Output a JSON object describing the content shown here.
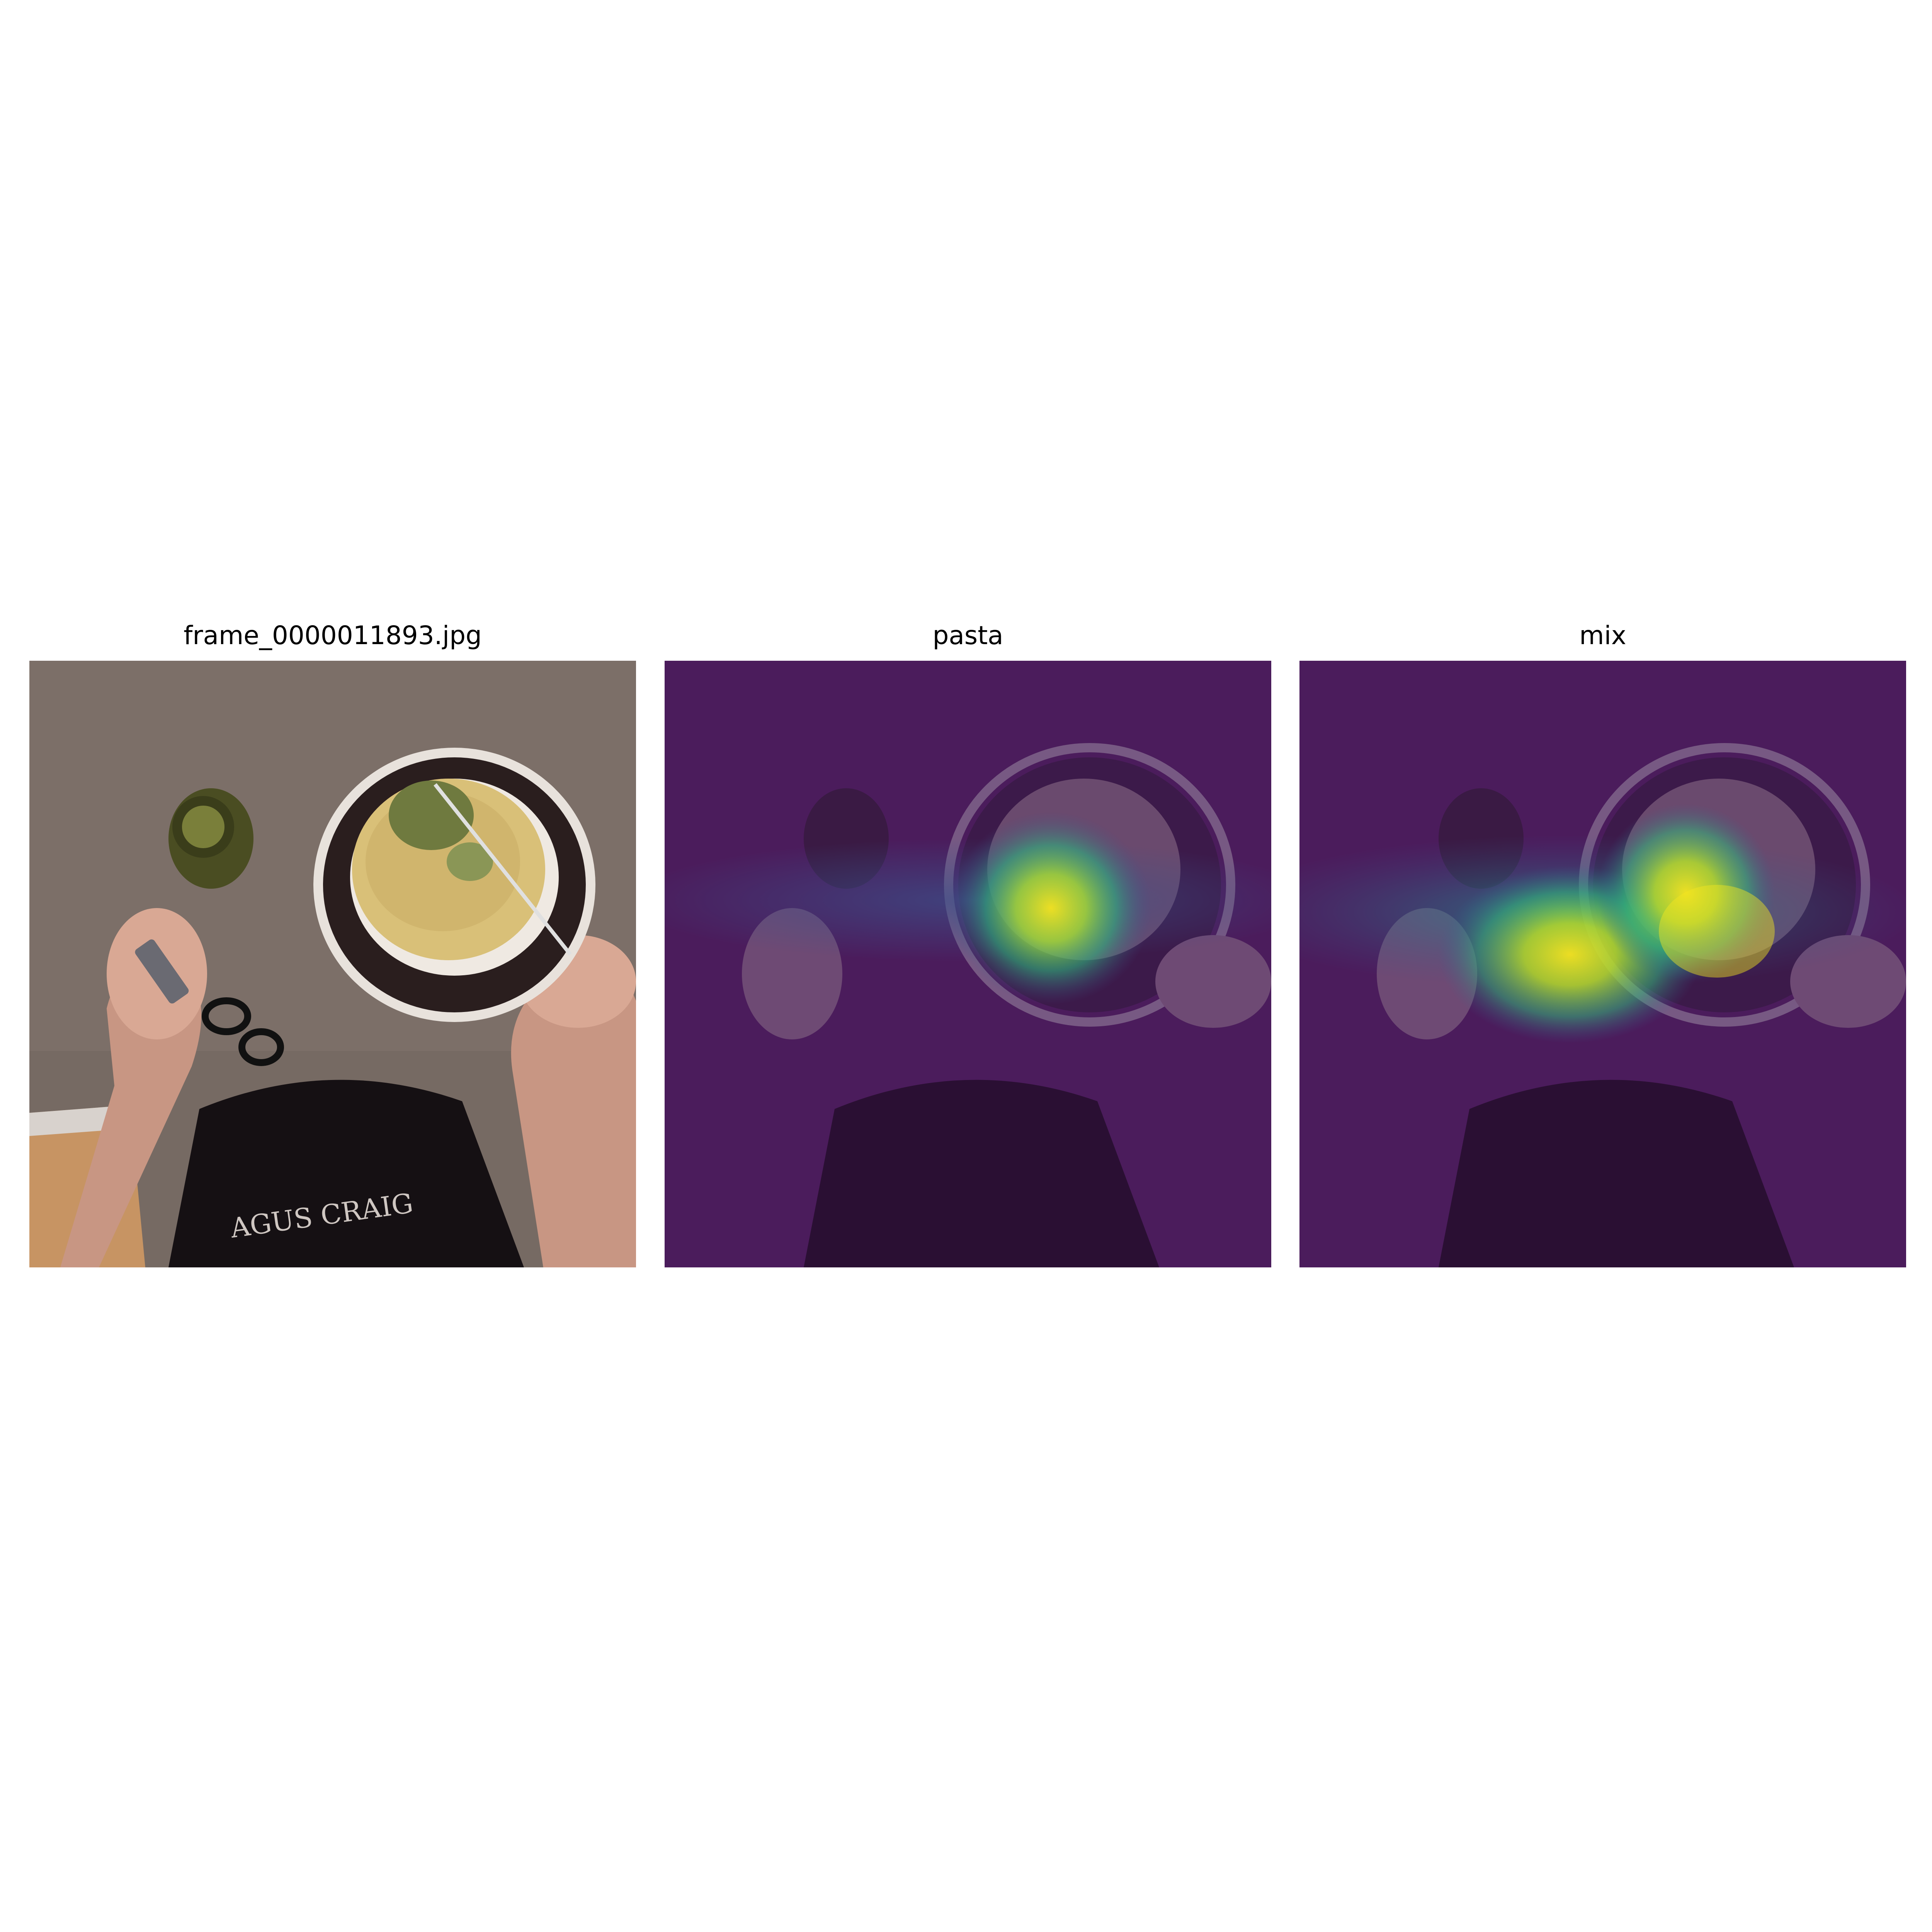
{
  "figure": {
    "panels": [
      {
        "title": "frame_0000011893.jpg",
        "kind": "original-frame"
      },
      {
        "title": "pasta",
        "kind": "attention-heatmap",
        "colormap": "viridis"
      },
      {
        "title": "mix",
        "kind": "attention-heatmap",
        "colormap": "viridis"
      }
    ]
  },
  "scene": {
    "shirt_print_text": "AGUS CRAIG",
    "colors": {
      "table": "#766a63",
      "floor": "#c79463",
      "shirt": "#151013",
      "plate_rim": "#2a1e1e",
      "plate_edge": "#e8e2dc",
      "pasta": "#d9c078",
      "pesto": "#6f7a3f",
      "jar": "#4a4d22",
      "skin": "#d9a894",
      "overlay_base": "#4b1c5c"
    }
  }
}
